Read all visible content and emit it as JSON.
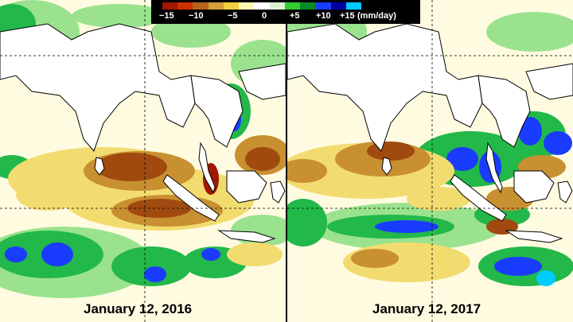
{
  "legend": {
    "colors": [
      "#a01800",
      "#d03000",
      "#b5651d",
      "#d2a03a",
      "#f0d040",
      "#fff6b0",
      "#ffffff",
      "#d8f5d0",
      "#33cc33",
      "#0b8a2a",
      "#1a3cff",
      "#0000a0",
      "#00c8ff"
    ],
    "ticks": [
      "−15",
      "−10",
      "−5",
      "0",
      "+5",
      "+10",
      "+15"
    ],
    "unit": "(mm/day)"
  },
  "panels": [
    {
      "date": "January 12, 2016"
    },
    {
      "date": "January 12, 2017"
    }
  ],
  "map_colors": {
    "land": "#ffffff",
    "dry_strong": "#a04a10",
    "dry_moderate": "#c89030",
    "dry_light": "#f2dc70",
    "neutral": "#fffbe0",
    "wet_light": "#9be28f",
    "wet_moderate": "#22b84a",
    "wet_strong": "#1a3cff",
    "wet_extreme": "#00ccff",
    "coast": "#000000",
    "grid": "#000000"
  }
}
